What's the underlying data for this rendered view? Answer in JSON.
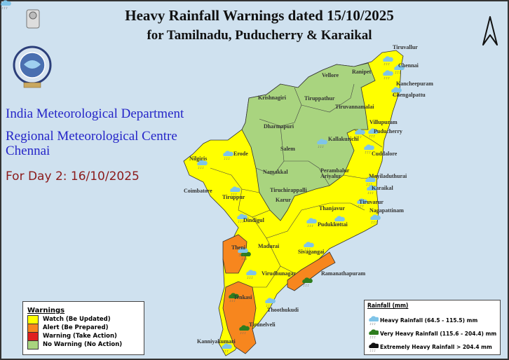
{
  "title": {
    "line1": "Heavy Rainfall Warnings dated 15/10/2025",
    "line2": "for Tamilnadu, Puducherry & Karaikal"
  },
  "organization": {
    "line1": "India Meteorological Department",
    "line2": "Regional Meteorological Centre",
    "line3": "Chennai"
  },
  "forecast_day": "For Day 2: 16/10/2025",
  "colors": {
    "watch": "#ffff00",
    "alert": "#f7861e",
    "warning": "#e02020",
    "no_warning": "#a9d47f",
    "background": "#cfe1ef"
  },
  "warnings_legend": {
    "title": "Warnings",
    "items": [
      {
        "label": "Watch (Be Updated)",
        "color": "#ffff00"
      },
      {
        "label": "Alert (Be Prepared)",
        "color": "#f7861e"
      },
      {
        "label": "Warning (Take Action)",
        "color": "#e02020"
      },
      {
        "label": "No Warning (No Action)",
        "color": "#a9d47f"
      }
    ]
  },
  "rainfall_legend": {
    "title": "Rainfall (mm)",
    "items": [
      {
        "label": "Heavy Rainfall (64.5 - 115.5) mm",
        "icon": "cloud-rain-lightblue-icon",
        "color": "#7fc4e8"
      },
      {
        "label": "Very Heavy Rainfall (115.6 - 204.4) mm",
        "icon": "cloud-rain-green-icon",
        "color": "#2e7d1e"
      },
      {
        "label": "Extremely Heavy Rainfall > 204.4 mm",
        "icon": "cloud-rain-black-icon",
        "color": "#111111"
      }
    ]
  },
  "districts": [
    {
      "name": "Tiruvallur",
      "level": "watch",
      "rain": "heavy"
    },
    {
      "name": "Chennai",
      "level": "watch",
      "rain": "heavy"
    },
    {
      "name": "Ranipet",
      "level": "none",
      "rain": ""
    },
    {
      "name": "Vellore",
      "level": "none",
      "rain": ""
    },
    {
      "name": "Kancheepuram",
      "level": "watch",
      "rain": "heavy"
    },
    {
      "name": "Chengalpattu",
      "level": "watch",
      "rain": "heavy"
    },
    {
      "name": "Krishnagiri",
      "level": "none",
      "rain": ""
    },
    {
      "name": "Tiruppathur",
      "level": "none",
      "rain": ""
    },
    {
      "name": "Tiruvannamalai",
      "level": "none",
      "rain": ""
    },
    {
      "name": "Dharmapuri",
      "level": "none",
      "rain": ""
    },
    {
      "name": "Villupuram",
      "level": "watch",
      "rain": "heavy"
    },
    {
      "name": "Puducherry",
      "level": "watch",
      "rain": "heavy"
    },
    {
      "name": "Salem",
      "level": "none",
      "rain": ""
    },
    {
      "name": "Kallakurichi",
      "level": "watch",
      "rain": "heavy"
    },
    {
      "name": "Cuddalore",
      "level": "watch",
      "rain": "heavy"
    },
    {
      "name": "Erode",
      "level": "watch",
      "rain": "heavy"
    },
    {
      "name": "Nilgiris",
      "level": "watch",
      "rain": "heavy"
    },
    {
      "name": "Namakkal",
      "level": "none",
      "rain": ""
    },
    {
      "name": "Perambalur",
      "level": "none",
      "rain": ""
    },
    {
      "name": "Ariyalur",
      "level": "none",
      "rain": ""
    },
    {
      "name": "Mayiladuthurai",
      "level": "watch",
      "rain": "heavy"
    },
    {
      "name": "Coimbatore",
      "level": "watch",
      "rain": "heavy"
    },
    {
      "name": "Tiruchirappalli",
      "level": "none",
      "rain": ""
    },
    {
      "name": "Karaikal",
      "level": "watch",
      "rain": "heavy"
    },
    {
      "name": "Tiruppur",
      "level": "watch",
      "rain": "heavy"
    },
    {
      "name": "Karur",
      "level": "none",
      "rain": ""
    },
    {
      "name": "Thanjavur",
      "level": "watch",
      "rain": "heavy"
    },
    {
      "name": "Tiruvarur",
      "level": "watch",
      "rain": "heavy"
    },
    {
      "name": "Nagapattinam",
      "level": "watch",
      "rain": "heavy"
    },
    {
      "name": "Dindigul",
      "level": "watch",
      "rain": "heavy"
    },
    {
      "name": "Pudukkottai",
      "level": "watch",
      "rain": "heavy"
    },
    {
      "name": "Theni",
      "level": "alert",
      "rain": "very_heavy"
    },
    {
      "name": "Madurai",
      "level": "watch",
      "rain": "heavy"
    },
    {
      "name": "Sivagangai",
      "level": "watch",
      "rain": "heavy"
    },
    {
      "name": "Ramanathapuram",
      "level": "alert",
      "rain": "very_heavy"
    },
    {
      "name": "Virudhunagar",
      "level": "watch",
      "rain": "heavy"
    },
    {
      "name": "Tenkasi",
      "level": "alert",
      "rain": "very_heavy"
    },
    {
      "name": "Thoothukudi",
      "level": "watch",
      "rain": "heavy"
    },
    {
      "name": "Tirunelveli",
      "level": "alert",
      "rain": "very_heavy"
    },
    {
      "name": "Kanniyakumari",
      "level": "watch",
      "rain": "heavy"
    }
  ]
}
